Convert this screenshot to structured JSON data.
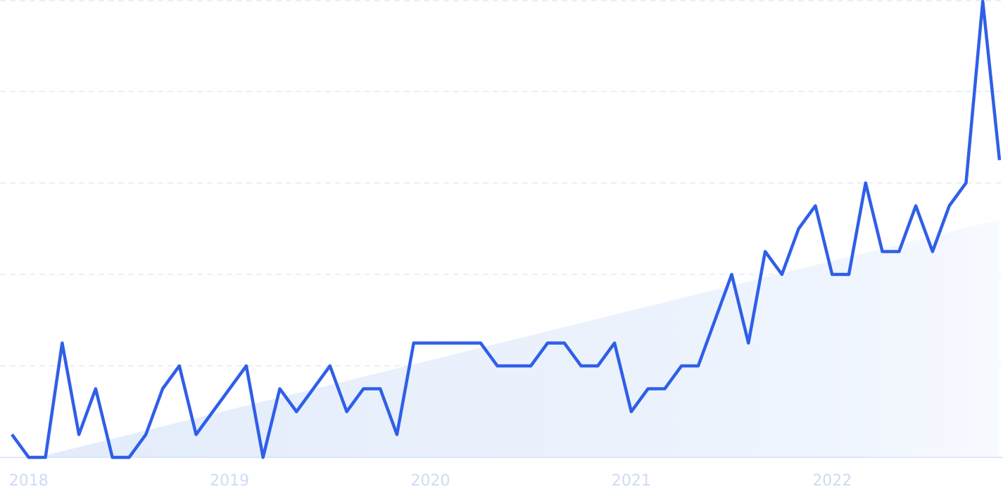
{
  "chart_data": {
    "type": "line",
    "title": "",
    "xlabel": "",
    "ylabel": "",
    "ylim": [
      0,
      100
    ],
    "grid": true,
    "y_gridlines": [
      0,
      20,
      40,
      60,
      80,
      100
    ],
    "x_start": "2017-12",
    "x_end": "2022-11",
    "x_step": "month",
    "x_tick_labels": [
      {
        "label": "2018",
        "date": "2018-01"
      },
      {
        "label": "2019",
        "date": "2019-01"
      },
      {
        "label": "2020",
        "date": "2020-01"
      },
      {
        "label": "2021",
        "date": "2021-01"
      },
      {
        "label": "2022",
        "date": "2022-01"
      }
    ],
    "series": [
      {
        "values": [
          5,
          0,
          0,
          25,
          5,
          15,
          0,
          0,
          5,
          15,
          20,
          5,
          10,
          15,
          20,
          0,
          15,
          10,
          15,
          20,
          10,
          15,
          15,
          5,
          25,
          25,
          25,
          25,
          25,
          20,
          20,
          20,
          25,
          25,
          20,
          20,
          25,
          10,
          15,
          15,
          20,
          20,
          30,
          40,
          25,
          45,
          40,
          50,
          55,
          40,
          40,
          60,
          45,
          45,
          55,
          45,
          55,
          60,
          100,
          65
        ]
      }
    ],
    "trend": {
      "start_date": "2018-02",
      "start_value": 0,
      "end_date": "2022-11",
      "end_value": 52
    },
    "colors": {
      "line": "#2f5fe8",
      "trend_fill": "#e6effc",
      "grid": "#dde4fa",
      "tick_text": "#cfdaf5"
    }
  }
}
